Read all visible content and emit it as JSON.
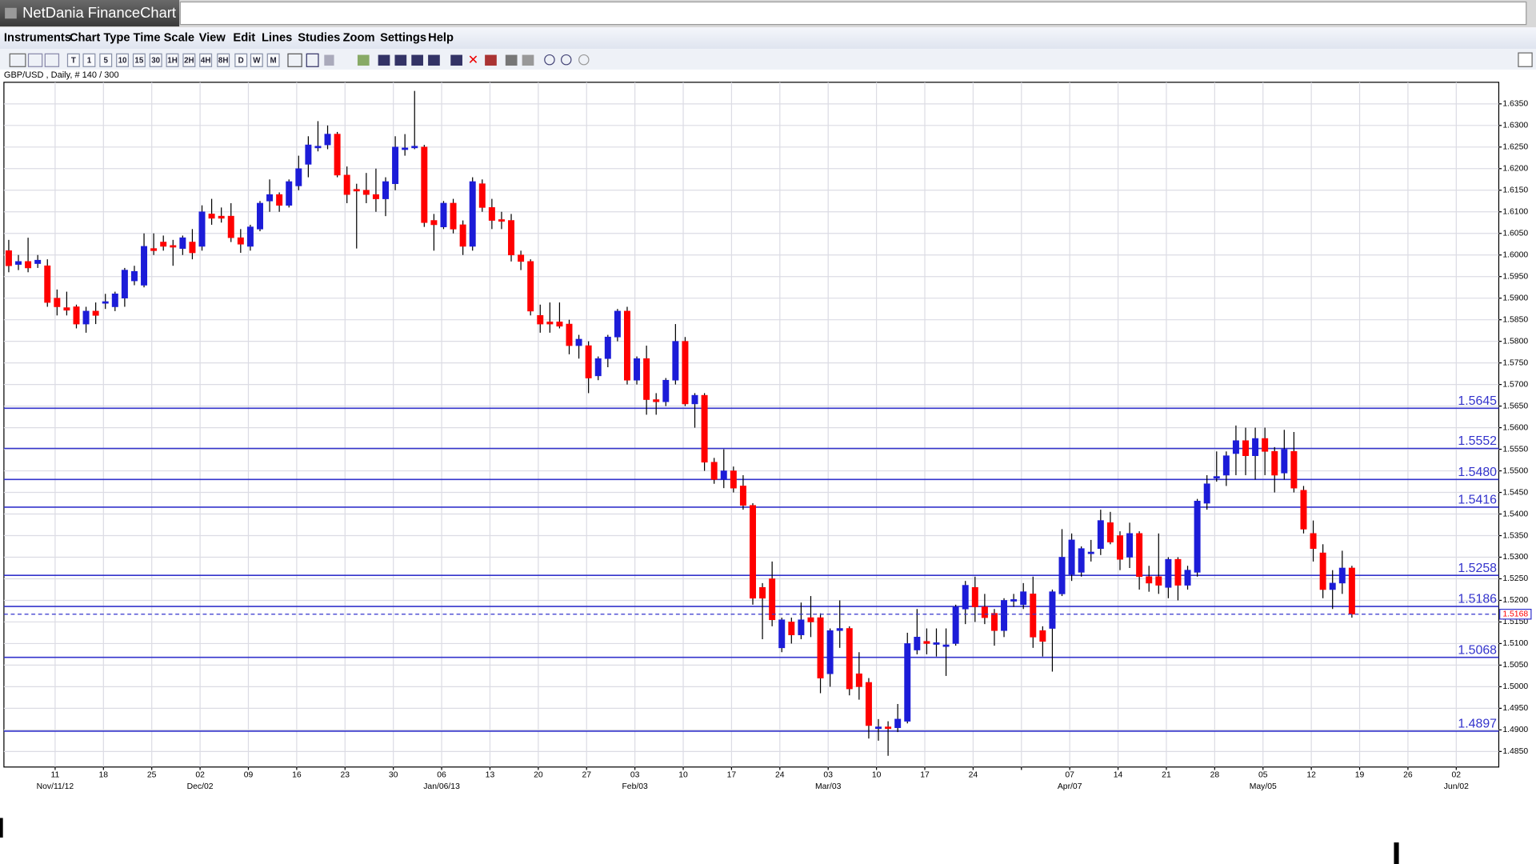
{
  "window": {
    "title": "NetDania FinanceChart",
    "menu": [
      "Instruments",
      "Chart Type",
      "Time Scale",
      "View",
      "Edit",
      "Lines",
      "Studies",
      "Zoom",
      "Settings",
      "Help"
    ],
    "toolbar": [
      "T",
      "1",
      "5",
      "10",
      "15",
      "30",
      "1H",
      "2H",
      "4H",
      "8H",
      "D",
      "W",
      "M"
    ]
  },
  "chart_data": {
    "type": "candlestick",
    "symbol_info": "GBP/USD , Daily, # 140 / 300",
    "up_color": "#1c1cd8",
    "down_color": "#ff0000",
    "level_color": "#3333cc",
    "grid": true,
    "xlim": [
      -0.5,
      154.2
    ],
    "xticks": [
      {
        "value": 4.8,
        "label": "11"
      },
      {
        "value": 9.8,
        "label": "18"
      },
      {
        "value": 14.8,
        "label": "25"
      },
      {
        "value": 19.8,
        "label": "02"
      },
      {
        "value": 24.8,
        "label": "09"
      },
      {
        "value": 29.8,
        "label": "16"
      },
      {
        "value": 34.8,
        "label": "23"
      },
      {
        "value": 39.8,
        "label": "30"
      },
      {
        "value": 44.8,
        "label": "06"
      },
      {
        "value": 49.8,
        "label": "13"
      },
      {
        "value": 54.8,
        "label": "20"
      },
      {
        "value": 59.8,
        "label": "27"
      },
      {
        "value": 64.8,
        "label": "03"
      },
      {
        "value": 69.8,
        "label": "10"
      },
      {
        "value": 74.8,
        "label": "17"
      },
      {
        "value": 79.8,
        "label": "24"
      },
      {
        "value": 84.8,
        "label": "03"
      },
      {
        "value": 89.8,
        "label": "10"
      },
      {
        "value": 94.8,
        "label": "17"
      },
      {
        "value": 99.8,
        "label": "24"
      },
      {
        "value": 104.8,
        "label": null
      },
      {
        "value": 109.8,
        "label": "07"
      },
      {
        "value": 114.8,
        "label": "14"
      },
      {
        "value": 119.8,
        "label": "21"
      },
      {
        "value": 124.8,
        "label": "28"
      },
      {
        "value": 129.8,
        "label": "05"
      },
      {
        "value": 134.8,
        "label": "12"
      },
      {
        "value": 139.8,
        "label": "19"
      },
      {
        "value": 144.8,
        "label": "26"
      },
      {
        "value": 149.8,
        "label": "02"
      }
    ],
    "xticks2": [
      {
        "value": 4.8,
        "label": "Nov/11/12"
      },
      {
        "value": 19.8,
        "label": "Dec/02"
      },
      {
        "value": 44.8,
        "label": "Jan/06/13"
      },
      {
        "value": 64.8,
        "label": "Feb/03"
      },
      {
        "value": 84.8,
        "label": "Mar/03"
      },
      {
        "value": 109.8,
        "label": "Apr/07"
      },
      {
        "value": 129.8,
        "label": "May/05"
      },
      {
        "value": 149.8,
        "label": "Jun/02"
      }
    ],
    "ylim": [
      1.4814,
      1.64
    ],
    "yticks": [
      {
        "value": 1.485,
        "label": "1.4850"
      },
      {
        "value": 1.49,
        "label": "1.4900"
      },
      {
        "value": 1.495,
        "label": "1.4950"
      },
      {
        "value": 1.5,
        "label": "1.5000"
      },
      {
        "value": 1.505,
        "label": "1.5050"
      },
      {
        "value": 1.51,
        "label": "1.5100"
      },
      {
        "value": 1.515,
        "label": "1.5150"
      },
      {
        "value": 1.52,
        "label": "1.5200"
      },
      {
        "value": 1.525,
        "label": "1.5250"
      },
      {
        "value": 1.53,
        "label": "1.5300"
      },
      {
        "value": 1.535,
        "label": "1.5350"
      },
      {
        "value": 1.54,
        "label": "1.5400"
      },
      {
        "value": 1.545,
        "label": "1.5450"
      },
      {
        "value": 1.55,
        "label": "1.5500"
      },
      {
        "value": 1.555,
        "label": "1.5550"
      },
      {
        "value": 1.56,
        "label": "1.5600"
      },
      {
        "value": 1.565,
        "label": "1.5650"
      },
      {
        "value": 1.57,
        "label": "1.5700"
      },
      {
        "value": 1.575,
        "label": "1.5750"
      },
      {
        "value": 1.58,
        "label": "1.5800"
      },
      {
        "value": 1.585,
        "label": "1.5850"
      },
      {
        "value": 1.59,
        "label": "1.5900"
      },
      {
        "value": 1.595,
        "label": "1.5950"
      },
      {
        "value": 1.6,
        "label": "1.6000"
      },
      {
        "value": 1.605,
        "label": "1.6050"
      },
      {
        "value": 1.61,
        "label": "1.6100"
      },
      {
        "value": 1.615,
        "label": "1.6150"
      },
      {
        "value": 1.62,
        "label": "1.6200"
      },
      {
        "value": 1.625,
        "label": "1.6250"
      },
      {
        "value": 1.63,
        "label": "1.6300"
      },
      {
        "value": 1.635,
        "label": "1.6350"
      }
    ],
    "levels": [
      1.5645,
      1.5552,
      {
        "value": 1.548,
        "label": "1.5480"
      },
      1.5416,
      1.5258,
      1.5186,
      1.5068,
      1.4897
    ],
    "last_price": 1.5168,
    "candles": [
      [
        1.601,
        1.6035,
        1.596,
        1.5975
      ],
      [
        1.5978,
        1.6,
        1.5965,
        1.5985
      ],
      [
        1.5985,
        1.604,
        1.596,
        1.597
      ],
      [
        1.598,
        1.6,
        1.597,
        1.5988
      ],
      [
        1.5975,
        1.599,
        1.588,
        1.589
      ],
      [
        1.59,
        1.592,
        1.586,
        1.588
      ],
      [
        1.5878,
        1.5915,
        1.586,
        1.5872
      ],
      [
        1.588,
        1.5885,
        1.583,
        1.584
      ],
      [
        1.584,
        1.588,
        1.582,
        1.587
      ],
      [
        1.587,
        1.589,
        1.584,
        1.586
      ],
      [
        1.5888,
        1.591,
        1.5875,
        1.5892
      ],
      [
        1.588,
        1.5915,
        1.587,
        1.591
      ],
      [
        1.59,
        1.597,
        1.588,
        1.5965
      ],
      [
        1.594,
        1.5975,
        1.593,
        1.5962
      ],
      [
        1.593,
        1.605,
        1.5925,
        1.602
      ],
      [
        1.6015,
        1.605,
        1.6,
        1.601
      ],
      [
        1.603,
        1.6045,
        1.601,
        1.602
      ],
      [
        1.6022,
        1.6035,
        1.5975,
        1.6018
      ],
      [
        1.6015,
        1.6045,
        1.6,
        1.604
      ],
      [
        1.603,
        1.606,
        1.599,
        1.6005
      ],
      [
        1.602,
        1.6115,
        1.601,
        1.61
      ],
      [
        1.6095,
        1.613,
        1.607,
        1.6085
      ],
      [
        1.609,
        1.611,
        1.6075,
        1.6085
      ],
      [
        1.609,
        1.612,
        1.603,
        1.604
      ],
      [
        1.604,
        1.606,
        1.6005,
        1.6025
      ],
      [
        1.602,
        1.607,
        1.601,
        1.6065
      ],
      [
        1.606,
        1.6125,
        1.6055,
        1.612
      ],
      [
        1.6125,
        1.6175,
        1.61,
        1.614
      ],
      [
        1.614,
        1.6145,
        1.61,
        1.6115
      ],
      [
        1.6115,
        1.6175,
        1.611,
        1.617
      ],
      [
        1.616,
        1.623,
        1.615,
        1.62
      ],
      [
        1.621,
        1.6275,
        1.618,
        1.6255
      ],
      [
        1.6248,
        1.631,
        1.624,
        1.6252
      ],
      [
        1.6255,
        1.63,
        1.6245,
        1.628
      ],
      [
        1.628,
        1.6285,
        1.618,
        1.6185
      ],
      [
        1.6185,
        1.6205,
        1.612,
        1.614
      ],
      [
        1.6152,
        1.6165,
        1.6015,
        1.6148
      ],
      [
        1.615,
        1.619,
        1.612,
        1.614
      ],
      [
        1.614,
        1.62,
        1.61,
        1.613
      ],
      [
        1.613,
        1.618,
        1.609,
        1.617
      ],
      [
        1.6165,
        1.6275,
        1.615,
        1.625
      ],
      [
        1.6244,
        1.628,
        1.623,
        1.6248
      ],
      [
        1.6248,
        1.638,
        1.6245,
        1.6252
      ],
      [
        1.625,
        1.6255,
        1.6065,
        1.6075
      ],
      [
        1.608,
        1.6095,
        1.601,
        1.607
      ],
      [
        1.6065,
        1.6125,
        1.606,
        1.612
      ],
      [
        1.612,
        1.613,
        1.605,
        1.606
      ],
      [
        1.607,
        1.608,
        1.6,
        1.602
      ],
      [
        1.602,
        1.618,
        1.601,
        1.617
      ],
      [
        1.6165,
        1.6175,
        1.61,
        1.611
      ],
      [
        1.611,
        1.613,
        1.606,
        1.608
      ],
      [
        1.6082,
        1.61,
        1.606,
        1.6078
      ],
      [
        1.608,
        1.6095,
        1.5985,
        1.6
      ],
      [
        1.6,
        1.601,
        1.5965,
        1.5985
      ],
      [
        1.5985,
        1.599,
        1.586,
        1.587
      ],
      [
        1.586,
        1.5885,
        1.582,
        1.584
      ],
      [
        1.5845,
        1.589,
        1.582,
        1.584
      ],
      [
        1.5845,
        1.589,
        1.583,
        1.5835
      ],
      [
        1.584,
        1.585,
        1.577,
        1.579
      ],
      [
        1.579,
        1.5815,
        1.576,
        1.5805
      ],
      [
        1.579,
        1.58,
        1.568,
        1.5715
      ],
      [
        1.572,
        1.5765,
        1.571,
        1.576
      ],
      [
        1.576,
        1.5815,
        1.574,
        1.581
      ],
      [
        1.581,
        1.5875,
        1.58,
        1.587
      ],
      [
        1.587,
        1.588,
        1.57,
        1.571
      ],
      [
        1.571,
        1.5765,
        1.57,
        1.576
      ],
      [
        1.576,
        1.579,
        1.563,
        1.5665
      ],
      [
        1.5665,
        1.568,
        1.563,
        1.566
      ],
      [
        1.566,
        1.5715,
        1.565,
        1.571
      ],
      [
        1.571,
        1.584,
        1.57,
        1.58
      ],
      [
        1.58,
        1.581,
        1.565,
        1.5655
      ],
      [
        1.5655,
        1.568,
        1.56,
        1.5675
      ],
      [
        1.5675,
        1.568,
        1.55,
        1.552
      ],
      [
        1.552,
        1.553,
        1.547,
        1.548
      ],
      [
        1.548,
        1.555,
        1.546,
        1.55
      ],
      [
        1.55,
        1.551,
        1.545,
        1.546
      ],
      [
        1.5465,
        1.549,
        1.541,
        1.542
      ],
      [
        1.542,
        1.5425,
        1.519,
        1.5205
      ],
      [
        1.523,
        1.524,
        1.511,
        1.5205
      ],
      [
        1.525,
        1.529,
        1.514,
        1.5155
      ],
      [
        1.509,
        1.516,
        1.508,
        1.5155
      ],
      [
        1.515,
        1.516,
        1.51,
        1.512
      ],
      [
        1.512,
        1.5195,
        1.511,
        1.5155
      ],
      [
        1.516,
        1.521,
        1.5115,
        1.515
      ],
      [
        1.516,
        1.517,
        1.4985,
        1.502
      ],
      [
        1.503,
        1.5135,
        1.5,
        1.513
      ],
      [
        1.513,
        1.52,
        1.509,
        1.5135
      ],
      [
        1.5135,
        1.514,
        1.498,
        1.4995
      ],
      [
        1.503,
        1.508,
        1.497,
        1.5
      ],
      [
        1.501,
        1.502,
        1.488,
        1.491
      ],
      [
        1.4903,
        1.4925,
        1.4875,
        1.4907
      ],
      [
        1.4907,
        1.492,
        1.484,
        1.4903
      ],
      [
        1.4905,
        1.496,
        1.4895,
        1.4925
      ],
      [
        1.492,
        1.5125,
        1.4915,
        1.51
      ],
      [
        1.5085,
        1.518,
        1.5075,
        1.5115
      ],
      [
        1.5105,
        1.5135,
        1.5075,
        1.51
      ],
      [
        1.5098,
        1.5135,
        1.507,
        1.5102
      ],
      [
        1.5093,
        1.5135,
        1.5025,
        1.5097
      ],
      [
        1.51,
        1.519,
        1.5095,
        1.5185
      ],
      [
        1.518,
        1.5245,
        1.5145,
        1.5235
      ],
      [
        1.523,
        1.5255,
        1.515,
        1.5185
      ],
      [
        1.5185,
        1.5215,
        1.5145,
        1.516
      ],
      [
        1.517,
        1.518,
        1.5095,
        1.513
      ],
      [
        1.513,
        1.5205,
        1.5115,
        1.52
      ],
      [
        1.5198,
        1.5215,
        1.5185,
        1.5202
      ],
      [
        1.519,
        1.524,
        1.518,
        1.522
      ],
      [
        1.5215,
        1.5255,
        1.509,
        1.5115
      ],
      [
        1.513,
        1.514,
        1.507,
        1.5105
      ],
      [
        1.5135,
        1.5225,
        1.5035,
        1.522
      ],
      [
        1.5215,
        1.5365,
        1.521,
        1.53
      ],
      [
        1.526,
        1.5355,
        1.5245,
        1.534
      ],
      [
        1.5265,
        1.5325,
        1.5255,
        1.532
      ],
      [
        1.5308,
        1.534,
        1.529,
        1.5312
      ],
      [
        1.532,
        1.541,
        1.5305,
        1.5385
      ],
      [
        1.538,
        1.5405,
        1.533,
        1.5335
      ],
      [
        1.535,
        1.536,
        1.527,
        1.5295
      ],
      [
        1.53,
        1.538,
        1.5275,
        1.5355
      ],
      [
        1.5355,
        1.536,
        1.5225,
        1.5255
      ],
      [
        1.5255,
        1.528,
        1.522,
        1.524
      ],
      [
        1.5255,
        1.5355,
        1.5215,
        1.5235
      ],
      [
        1.523,
        1.53,
        1.5205,
        1.5295
      ],
      [
        1.5295,
        1.53,
        1.52,
        1.5235
      ],
      [
        1.5235,
        1.528,
        1.5225,
        1.527
      ],
      [
        1.5265,
        1.5435,
        1.5255,
        1.543
      ],
      [
        1.5425,
        1.549,
        1.541,
        1.547
      ],
      [
        1.5483,
        1.5545,
        1.5475,
        1.5487
      ],
      [
        1.549,
        1.5545,
        1.5465,
        1.5535
      ],
      [
        1.554,
        1.5605,
        1.549,
        1.557
      ],
      [
        1.557,
        1.56,
        1.549,
        1.5535
      ],
      [
        1.5535,
        1.56,
        1.548,
        1.5575
      ],
      [
        1.5575,
        1.56,
        1.549,
        1.5545
      ],
      [
        1.5545,
        1.5555,
        1.545,
        1.549
      ],
      [
        1.5495,
        1.5595,
        1.548,
        1.555
      ],
      [
        1.5545,
        1.559,
        1.545,
        1.546
      ],
      [
        1.5455,
        1.5465,
        1.5355,
        1.5365
      ],
      [
        1.5355,
        1.5385,
        1.529,
        1.532
      ],
      [
        1.531,
        1.533,
        1.5205,
        1.5225
      ],
      [
        1.5225,
        1.527,
        1.518,
        1.524
      ],
      [
        1.524,
        1.5315,
        1.5215,
        1.5275
      ],
      [
        1.5275,
        1.528,
        1.516,
        1.5168
      ]
    ]
  }
}
